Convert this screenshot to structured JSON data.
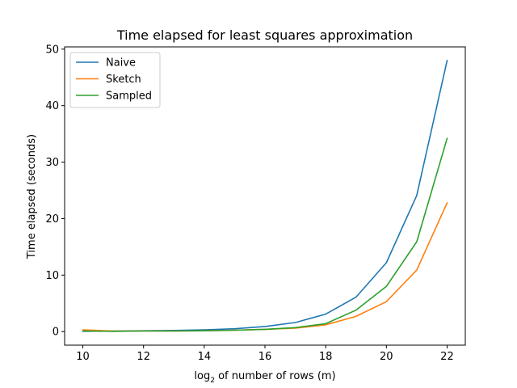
{
  "chart_data": {
    "type": "line",
    "title": "Time elapsed for least squares approximation",
    "xlabel_prefix": "log",
    "xlabel_sub": "2",
    "xlabel_rest": " of number of rows (m)",
    "ylabel": "Time elapsed (seconds)",
    "x": [
      10,
      11,
      12,
      13,
      14,
      15,
      16,
      17,
      18,
      19,
      20,
      21,
      22
    ],
    "xlim": [
      9.4,
      22.6
    ],
    "ylim": [
      -2.4,
      50.4
    ],
    "xticks": [
      10,
      12,
      14,
      16,
      18,
      20,
      22
    ],
    "yticks": [
      0,
      10,
      20,
      30,
      40,
      50
    ],
    "grid": false,
    "legend_position": "top-left",
    "series": [
      {
        "name": "Naive",
        "color": "#1f77b4",
        "values": [
          0.05,
          0.1,
          0.15,
          0.2,
          0.3,
          0.5,
          0.9,
          1.6,
          3.1,
          6.1,
          12.2,
          24.1,
          48.0
        ]
      },
      {
        "name": "Sketch",
        "color": "#ff7f0e",
        "values": [
          0.3,
          0.1,
          0.1,
          0.1,
          0.15,
          0.25,
          0.4,
          0.6,
          1.2,
          2.7,
          5.3,
          10.9,
          22.8
        ]
      },
      {
        "name": "Sampled",
        "color": "#2ca02c",
        "values": [
          0.1,
          0.05,
          0.1,
          0.1,
          0.15,
          0.25,
          0.4,
          0.7,
          1.4,
          3.8,
          8.0,
          15.9,
          34.2
        ]
      }
    ]
  }
}
